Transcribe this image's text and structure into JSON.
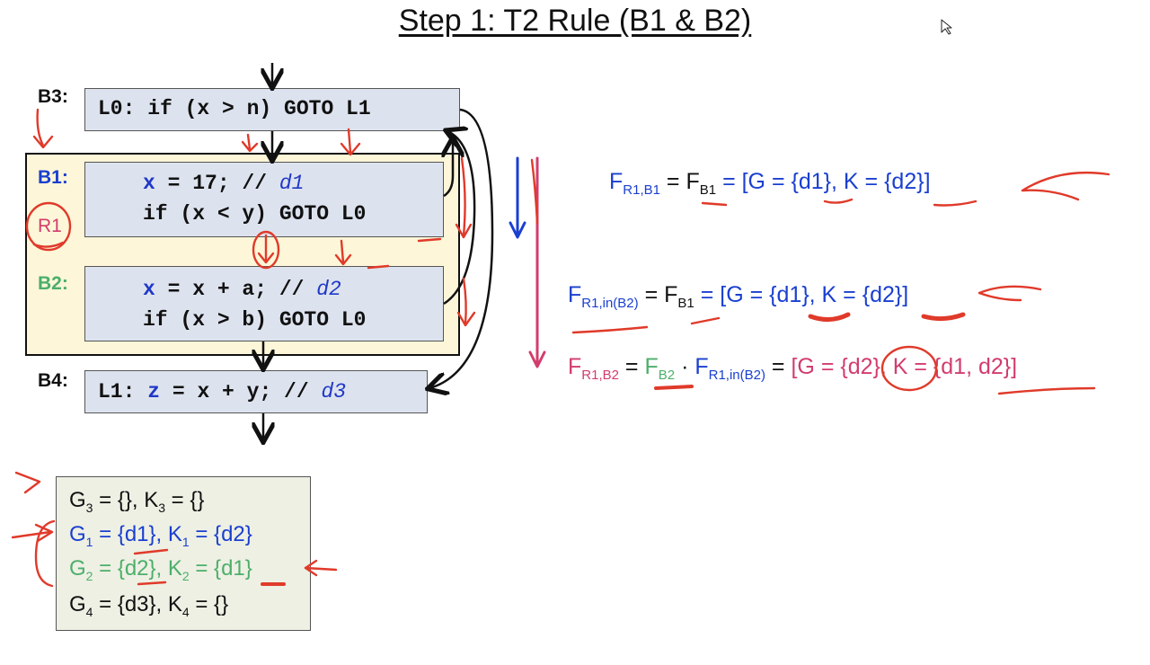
{
  "title": "Step 1: T2 Rule (B1 & B2)",
  "labels": {
    "b3": "B3:",
    "b1": "B1:",
    "r1": "R1",
    "b2": "B2:",
    "b4": "B4:"
  },
  "code": {
    "b3_line": "L0: if (x > n) GOTO L1",
    "b1_assign_var": "x",
    "b1_assign_rest": " = 17; // ",
    "b1_def": "d1",
    "b1_line2": "if (x < y) GOTO L0",
    "b2_assign_var": "x",
    "b2_assign_rest": " = x + a; // ",
    "b2_def": "d2",
    "b2_line2": "if (x > b) GOTO L0",
    "b4_label": "L1: ",
    "b4_var": "z",
    "b4_rest": " = x + y; // ",
    "b4_def": "d3"
  },
  "equations": {
    "eq1": {
      "lhs": "F",
      "lhs_sub": "R1,B1",
      "eq": " = ",
      "mid": "F",
      "mid_sub": "B1",
      "rhs": " = [G = {d1}, K = {d2}]"
    },
    "eq2": {
      "lhs": "F",
      "lhs_sub": "R1,in(B2)",
      "eq": " = ",
      "mid": "F",
      "mid_sub": "B1",
      "rhs": " = [G = {d1}, K = {d2}]"
    },
    "eq3": {
      "lhs": "F",
      "lhs_sub": "R1,B2",
      "eq": " = ",
      "f2": "F",
      "f2_sub": "B2",
      "dot": " · ",
      "f3": "F",
      "f3_sub": "R1,in(B2)",
      "eq2": " = ",
      "rhs": "[G = {d2}, K = {d1, d2}]"
    }
  },
  "gen_kill": [
    {
      "g": "G",
      "gi": "3",
      "gval": " = {}, ",
      "k": "K",
      "ki": "3",
      "kval": " = {}"
    },
    {
      "g": "G",
      "gi": "1",
      "gval": " = {d1}, ",
      "k": "K",
      "ki": "1",
      "kval": " = {d2}"
    },
    {
      "g": "G",
      "gi": "2",
      "gval": " = {d2}, ",
      "k": "K",
      "ki": "2",
      "kval": " = {d1}"
    },
    {
      "g": "G",
      "gi": "4",
      "gval": " = {d3}, ",
      "k": "K",
      "ki": "4",
      "kval": " = {}"
    }
  ],
  "colors": {
    "blue": "#1a3fd0",
    "green": "#4caf6a",
    "pink": "#d23d6c",
    "annotation_red": "#e03a2a",
    "region_fill": "#fdf6d8",
    "block_fill": "#dde3ee"
  }
}
